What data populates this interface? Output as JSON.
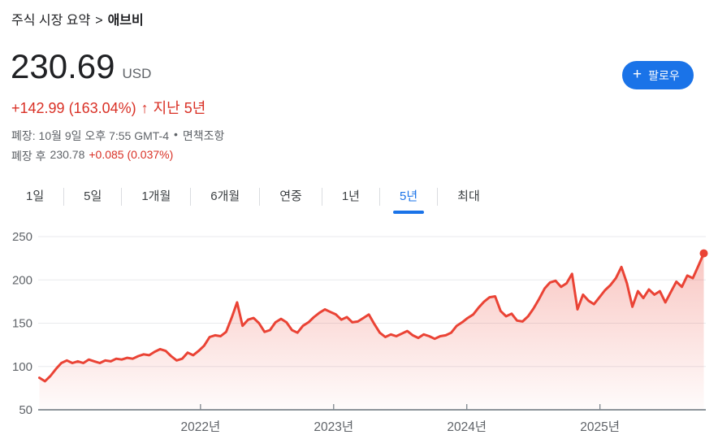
{
  "colors": {
    "accent_blue": "#1a73e8",
    "text_primary": "#202124",
    "text_secondary": "#5f6368",
    "change_red": "#d93025",
    "line_red": "#ea4335",
    "divider": "#dadce0",
    "gridline": "#e9eaed",
    "axis": "#7d858c"
  },
  "breadcrumb": {
    "section": "주식 시장 요약",
    "separator": ">",
    "stock": "애브비"
  },
  "quote": {
    "price": "230.69",
    "currency": "USD",
    "change": "+142.99 (163.04%)",
    "arrow": "↑",
    "period": "지난 5년"
  },
  "status": {
    "closed": "폐장: 10월 9일 오후 7:55 GMT-4",
    "dot": "•",
    "disclaimer": "면책조항",
    "after_label": "폐장 후",
    "after_price": "230.78",
    "after_change": "+0.085 (0.037%)"
  },
  "follow": {
    "plus": "+",
    "label": "팔로우"
  },
  "tabs": [
    {
      "label": "1일",
      "selected": false
    },
    {
      "label": "5일",
      "selected": false
    },
    {
      "label": "1개월",
      "selected": false
    },
    {
      "label": "6개월",
      "selected": false
    },
    {
      "label": "연중",
      "selected": false
    },
    {
      "label": "1년",
      "selected": false
    },
    {
      "label": "5년",
      "selected": true
    },
    {
      "label": "최대",
      "selected": false
    }
  ],
  "chart_data": {
    "type": "area",
    "ylabel": "",
    "xlabel": "",
    "y_range": [
      50,
      250
    ],
    "y_ticks": [
      50,
      100,
      150,
      200,
      250
    ],
    "x_ticks": [
      {
        "label": "2022년",
        "year": 2022
      },
      {
        "label": "2023년",
        "year": 2023
      },
      {
        "label": "2024년",
        "year": 2024
      },
      {
        "label": "2025년",
        "year": 2025
      }
    ],
    "x_range_years": [
      2020.79,
      2025.78
    ],
    "grid": true,
    "legend": "none",
    "last_value": 230.69,
    "values": [
      87,
      83,
      89,
      97,
      104,
      107,
      104,
      106,
      104,
      108,
      106,
      104,
      107,
      106,
      109,
      108,
      110,
      109,
      112,
      114,
      113,
      117,
      120,
      118,
      112,
      107,
      109,
      116,
      113,
      118,
      124,
      134,
      136,
      135,
      140,
      156,
      174,
      147,
      154,
      156,
      150,
      140,
      142,
      151,
      155,
      151,
      142,
      139,
      147,
      151,
      157,
      162,
      166,
      163,
      160,
      154,
      157,
      151,
      152,
      156,
      160,
      149,
      139,
      134,
      137,
      135,
      138,
      141,
      136,
      133,
      137,
      135,
      132,
      135,
      136,
      139,
      147,
      151,
      156,
      160,
      168,
      175,
      180,
      181,
      164,
      158,
      161,
      153,
      152,
      158,
      167,
      178,
      190,
      197,
      199,
      192,
      196,
      207,
      166,
      183,
      176,
      172,
      180,
      188,
      194,
      202,
      215,
      196,
      169,
      187,
      179,
      189,
      183,
      187,
      174,
      186,
      198,
      192,
      205,
      202,
      216,
      230.69
    ]
  }
}
